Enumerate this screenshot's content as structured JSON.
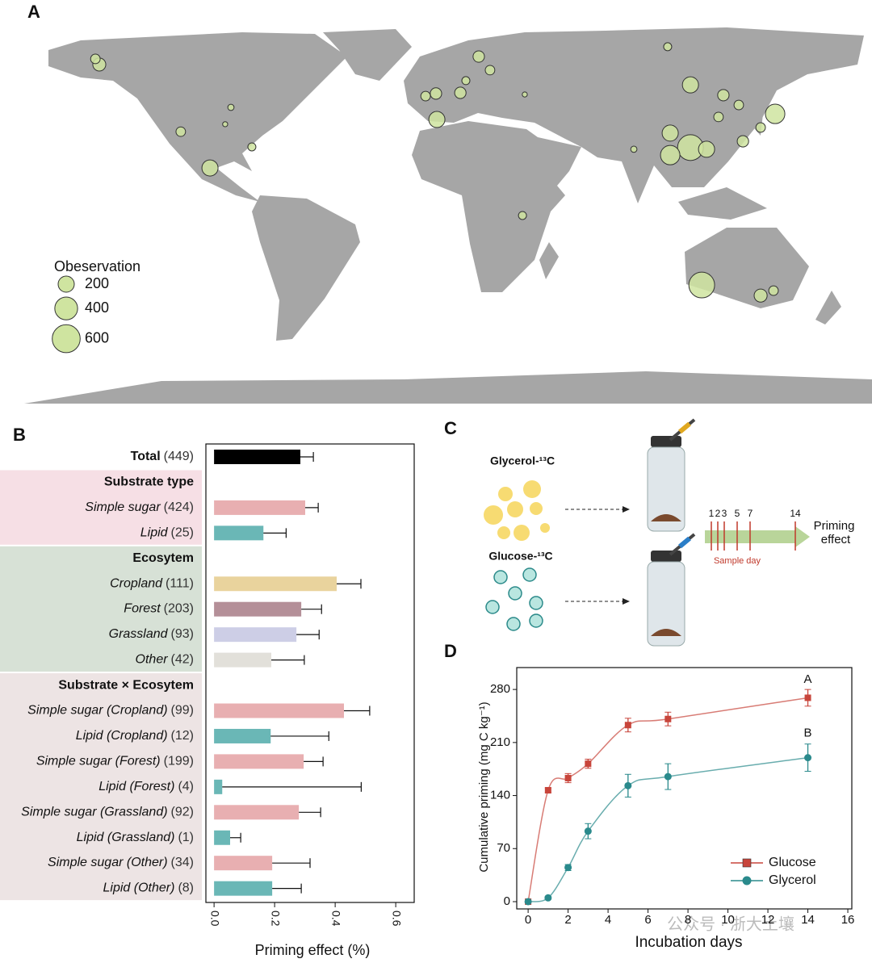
{
  "panel_labels": [
    "A",
    "B",
    "C",
    "D"
  ],
  "watermark": "公众号 · 浙大土壤",
  "chart_data": [
    {
      "type": "bubble-map",
      "legend_title": "Obeservation",
      "size_legend": [
        200,
        400,
        600
      ],
      "land_color": "#a6a6a6",
      "bubble_color": "#cfe4a0",
      "lon": [
        113.9,
        109.0,
        145.8,
        100.2,
        -99.8,
        -1.2,
        109.0,
        100.2,
        116.0,
        -147.9,
        139.5,
        -70.0,
        123.3,
        9.0,
        -1.6,
        17.0,
        131.8,
        -149.6,
        -112.5,
        -6.1,
        21.9,
        130.0,
        139.5,
        145.1,
        121.2,
        -81.6,
        11.4,
        99.1,
        36.0,
        -90.7,
        84.4,
        -93.2,
        37.0
      ],
      "lat": [
        -32.1,
        26.6,
        41.0,
        23.4,
        17.9,
        38.6,
        53.4,
        32.8,
        25.9,
        62.1,
        -36.6,
        66.0,
        49.0,
        50.0,
        49.7,
        65.5,
        29.3,
        64.5,
        33.4,
        48.6,
        59.7,
        44.8,
        35.2,
        -34.5,
        39.7,
        26.9,
        55.2,
        69.7,
        -2.4,
        43.8,
        25.9,
        36.6,
        49.3
      ],
      "sizes": [
        510,
        510,
        290,
        290,
        200,
        200,
        200,
        200,
        200,
        130,
        130,
        0,
        100,
        100,
        100,
        100,
        100,
        70,
        70,
        70,
        70,
        70,
        70,
        70,
        70,
        50,
        50,
        50,
        50,
        30,
        30,
        20,
        20
      ]
    },
    {
      "type": "hbar",
      "xlabel": "Priming effect (%)",
      "xlim": [
        -0.027,
        0.661
      ],
      "xticks": [
        {
          "value": 0,
          "label": "0.0"
        },
        0.2,
        0.4,
        0.6
      ],
      "rows": [
        {
          "name": "Total",
          "n": "(449)",
          "style": "bold",
          "value": 0.285,
          "error": 0.043,
          "color": "#000000"
        },
        {
          "header": "Substrate type",
          "background": "#f6dfe5"
        },
        {
          "name": "Simple sugar",
          "n": "(424)",
          "style": "italic",
          "value": 0.301,
          "error": 0.043,
          "color": "#e8afb1"
        },
        {
          "name": "Lipid",
          "n": "(25)",
          "style": "italic",
          "value": 0.163,
          "error": 0.075,
          "color": "#6ab7b6"
        },
        {
          "header": "Ecosytem",
          "background": "#d7e1d6"
        },
        {
          "name": "Cropland",
          "n": "(111)",
          "style": "italic",
          "value": 0.405,
          "error": 0.08,
          "color": "#e9d39d"
        },
        {
          "name": "Forest",
          "n": "(203)",
          "style": "italic",
          "value": 0.288,
          "error": 0.067,
          "color": "#b48f98"
        },
        {
          "name": "Grassland",
          "n": "(93)",
          "style": "italic",
          "value": 0.272,
          "error": 0.075,
          "color": "#cdcee6"
        },
        {
          "name": "Other",
          "n": "(42)",
          "style": "italic",
          "value": 0.189,
          "error": 0.109,
          "color": "#e2e0da"
        },
        {
          "header": "Substrate × Ecosytem",
          "background": "#ede4e4"
        },
        {
          "name": "Simple sugar (Cropland)",
          "n": "(99)",
          "style": "italic",
          "value": 0.429,
          "error": 0.085,
          "color": "#e8afb1"
        },
        {
          "name": "Lipid (Cropland)",
          "n": "(12)",
          "style": "italic",
          "value": 0.187,
          "error": 0.192,
          "color": "#6ab7b6"
        },
        {
          "name": "Simple sugar (Forest)",
          "n": "(199)",
          "style": "italic",
          "value": 0.296,
          "error": 0.064,
          "color": "#e8afb1"
        },
        {
          "name": "Lipid (Forest)",
          "n": "(4)",
          "style": "italic",
          "value": 0.027,
          "error": 0.459,
          "color": "#6ab7b6"
        },
        {
          "name": "Simple sugar (Grassland)",
          "n": "(92)",
          "style": "italic",
          "value": 0.28,
          "error": 0.072,
          "color": "#e8afb1"
        },
        {
          "name": "Lipid (Grassland)",
          "n": "(1)",
          "style": "italic",
          "value": 0.053,
          "error": 0.035,
          "color": "#6ab7b6"
        },
        {
          "name": "Simple sugar (Other)",
          "n": "(34)",
          "style": "italic",
          "value": 0.192,
          "error": 0.125,
          "color": "#e8afb1"
        },
        {
          "name": "Lipid (Other)",
          "n": "(8)",
          "style": "italic",
          "value": 0.192,
          "error": 0.096,
          "color": "#6ab7b6"
        }
      ]
    },
    {
      "type": "line",
      "xlabel": "Incubation days",
      "ylabel": "Cumulative priming (mg C kg⁻¹)",
      "x": [
        0,
        1,
        2,
        3,
        5,
        7,
        14
      ],
      "xlim": [
        -0.57,
        16.2
      ],
      "ylim": [
        -9.6,
        308.9
      ],
      "xticks": [
        0,
        2,
        4,
        6,
        8,
        10,
        12,
        14,
        16
      ],
      "yticks": [
        0,
        70,
        140,
        210,
        280
      ],
      "legend": "lower right",
      "series": [
        {
          "name": "Glucose",
          "color": "#c8453b",
          "marker": "square",
          "values": [
            0,
            147,
            163,
            182,
            233,
            241,
            269
          ],
          "errors": [
            0,
            3,
            6,
            6,
            9,
            9,
            11
          ]
        },
        {
          "name": "Glycerol",
          "color": "#2a8a8c",
          "marker": "circle",
          "values": [
            0,
            5,
            45,
            93,
            153,
            165,
            190
          ],
          "errors": [
            0,
            2,
            4,
            10,
            15,
            17,
            18
          ]
        }
      ],
      "annotations": [
        {
          "text": "A",
          "x": 14,
          "y": 293
        },
        {
          "text": "B",
          "x": 14,
          "y": 222
        }
      ]
    }
  ],
  "diagram": {
    "glycerol_label": "Glycerol-¹³C",
    "glucose_label": "Glucose-¹³C",
    "sample_days": [
      1,
      2,
      3,
      5,
      7,
      14
    ],
    "sample_day_label": "Sample day",
    "outcome": [
      "Priming",
      "effect"
    ]
  }
}
